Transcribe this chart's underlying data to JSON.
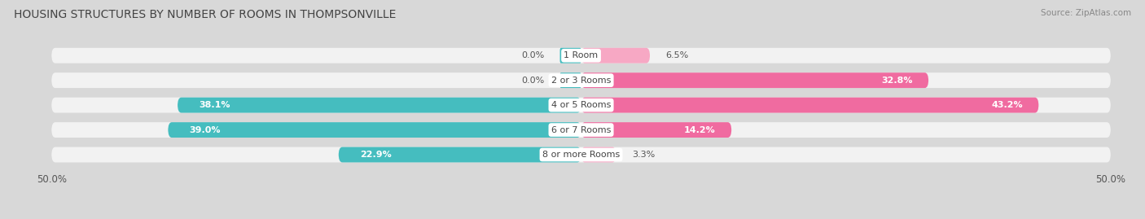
{
  "title": "HOUSING STRUCTURES BY NUMBER OF ROOMS IN THOMPSONVILLE",
  "source": "Source: ZipAtlas.com",
  "categories": [
    "1 Room",
    "2 or 3 Rooms",
    "4 or 5 Rooms",
    "6 or 7 Rooms",
    "8 or more Rooms"
  ],
  "owner_values": [
    0.0,
    0.0,
    38.1,
    39.0,
    22.9
  ],
  "renter_values": [
    6.5,
    32.8,
    43.2,
    14.2,
    3.3
  ],
  "owner_color": "#45BDBF",
  "renter_color": "#F06BA0",
  "renter_color_light": "#F7A8C4",
  "bar_height": 0.62,
  "xlim_left": -50,
  "xlim_right": 50,
  "bg_color": "#d8d8d8",
  "bar_bg_color": "#f2f2f2",
  "title_fontsize": 10,
  "source_fontsize": 7.5,
  "label_fontsize": 8,
  "category_fontsize": 8
}
